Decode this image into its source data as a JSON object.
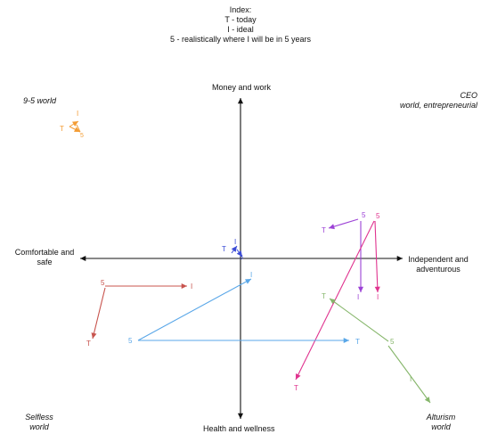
{
  "index": {
    "title": "Index:",
    "lines": [
      "T - today",
      "I - ideal",
      "5 - realistically where I will be in 5 years"
    ]
  },
  "axes": {
    "top": "Money and work",
    "bottom": "Health and wellness",
    "left": [
      "Comfortable and",
      "safe"
    ],
    "right": [
      "Independent and",
      "adventurous"
    ]
  },
  "quadrants": {
    "top_left": [
      "9-5 world"
    ],
    "top_right": [
      "CEO",
      "world, entrepreneurial"
    ],
    "bottom_left": [
      "Selfless",
      "world"
    ],
    "bottom_right": [
      "Alturism",
      "world"
    ]
  },
  "marker_letters": {
    "today": "T",
    "ideal": "I",
    "five_years": "5"
  },
  "colors": {
    "orange": "#f39c34",
    "purple": "#9c42d6",
    "magenta": "#e0338f",
    "blue": "#3a4bd6",
    "light_blue": "#5aa7e8",
    "red": "#c8544e",
    "green": "#86b66b",
    "axis": "#111111"
  }
}
